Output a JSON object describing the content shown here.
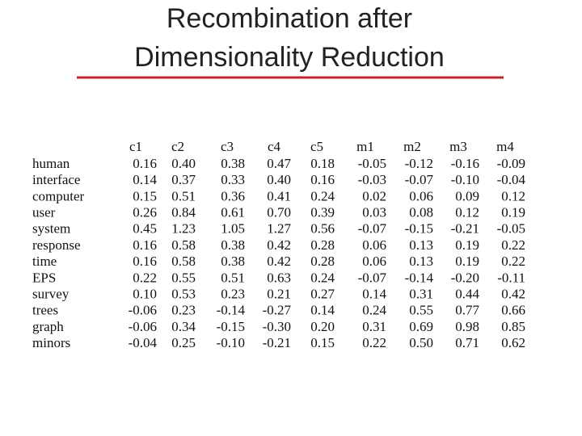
{
  "title": [
    "Recombination after",
    "Dimensionality Reduction"
  ],
  "table": {
    "columns": [
      "c1",
      "c2",
      "c3",
      "c4",
      "c5",
      "m1",
      "m2",
      "m3",
      "m4"
    ],
    "rows": [
      [
        "human",
        "0.16",
        "0.40",
        "0.38",
        "0.47",
        "0.18",
        "-0.05",
        "-0.12",
        "-0.16",
        "-0.09"
      ],
      [
        "interface",
        "0.14",
        "0.37",
        "0.33",
        "0.40",
        "0.16",
        "-0.03",
        "-0.07",
        "-0.10",
        "-0.04"
      ],
      [
        "computer",
        "0.15",
        "0.51",
        "0.36",
        "0.41",
        "0.24",
        "0.02",
        "0.06",
        "0.09",
        "0.12"
      ],
      [
        "user",
        "0.26",
        "0.84",
        "0.61",
        "0.70",
        "0.39",
        "0.03",
        "0.08",
        "0.12",
        "0.19"
      ],
      [
        "system",
        "0.45",
        "1.23",
        "1.05",
        "1.27",
        "0.56",
        "-0.07",
        "-0.15",
        "-0.21",
        "-0.05"
      ],
      [
        "response",
        "0.16",
        "0.58",
        "0.38",
        "0.42",
        "0.28",
        "0.06",
        "0.13",
        "0.19",
        "0.22"
      ],
      [
        "time",
        "0.16",
        "0.58",
        "0.38",
        "0.42",
        "0.28",
        "0.06",
        "0.13",
        "0.19",
        "0.22"
      ],
      [
        "EPS",
        "0.22",
        "0.55",
        "0.51",
        "0.63",
        "0.24",
        "-0.07",
        "-0.14",
        "-0.20",
        "-0.11"
      ],
      [
        "survey",
        "0.10",
        "0.53",
        "0.23",
        "0.21",
        "0.27",
        "0.14",
        "0.31",
        "0.44",
        "0.42"
      ],
      [
        "trees",
        "-0.06",
        "0.23",
        "-0.14",
        "-0.27",
        "0.14",
        "0.24",
        "0.55",
        "0.77",
        "0.66"
      ],
      [
        "graph",
        "-0.06",
        "0.34",
        "-0.15",
        "-0.30",
        "0.20",
        "0.31",
        "0.69",
        "0.98",
        "0.85"
      ],
      [
        "minors",
        "-0.04",
        "0.25",
        "-0.10",
        "-0.21",
        "0.15",
        "0.22",
        "0.50",
        "0.71",
        "0.62"
      ]
    ]
  }
}
